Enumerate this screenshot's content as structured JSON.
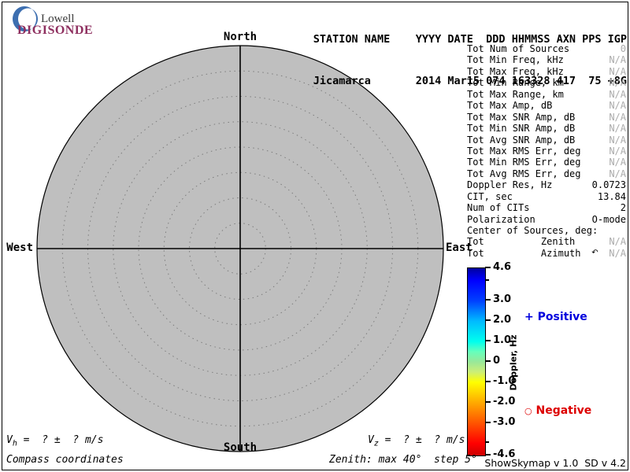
{
  "logo": {
    "name": "Lowell",
    "product": "DIGISONDE",
    "crescent_color": "#3c6eb0",
    "name_color": "#3a3a3a",
    "product_color": "#8e2f5f"
  },
  "header": {
    "columns_line": "STATION NAME    YYYY DATE  DDD HHMMSS AXN PPS IGP",
    "values_line": "Jicamarca       2014 Mar15 074 163328 417  75 +8G",
    "station_name": "Jicamarca",
    "year": "2014",
    "date": "Mar15",
    "ddd": "074",
    "hhmmss": "163328",
    "axn": "417",
    "pps": "75",
    "igp": "+8G"
  },
  "info_panel": {
    "muted_color": "#ababab",
    "rows": [
      {
        "label": "Tot Num of Sources",
        "value": "0",
        "muted": true
      },
      {
        "label": "Tot Min Freq, kHz",
        "value": "N/A",
        "muted": true
      },
      {
        "label": "Tot Max Freq, kHz",
        "value": "N/A",
        "muted": true
      },
      {
        "label": "Tot Min Range, km",
        "value": "N/A",
        "muted": true
      },
      {
        "label": "Tot Max Range, km",
        "value": "N/A",
        "muted": true
      },
      {
        "label": "Tot Max Amp, dB",
        "value": "N/A",
        "muted": true
      },
      {
        "label": "Tot Max SNR Amp, dB",
        "value": "N/A",
        "muted": true
      },
      {
        "label": "Tot Min SNR Amp, dB",
        "value": "N/A",
        "muted": true
      },
      {
        "label": "Tot Avg SNR Amp, dB",
        "value": "N/A",
        "muted": true
      },
      {
        "label": "Tot Max RMS Err, deg",
        "value": "N/A",
        "muted": true
      },
      {
        "label": "Tot Min RMS Err, deg",
        "value": "N/A",
        "muted": true
      },
      {
        "label": "Tot Avg RMS Err, deg",
        "value": "N/A",
        "muted": true
      },
      {
        "label": "Doppler Res, Hz",
        "value": "0.0723",
        "muted": false
      },
      {
        "label": "CIT, sec",
        "value": "13.84",
        "muted": false
      },
      {
        "label": "Num of CITs",
        "value": "2",
        "muted": false
      },
      {
        "label": "Polarization",
        "value": "O-mode",
        "muted": false
      },
      {
        "label": "Center of Sources, deg:",
        "value": "",
        "muted": false
      },
      {
        "label": "Tot          Zenith",
        "value": "N/A",
        "muted": true
      },
      {
        "label": "Tot          Azimuth",
        "icon": "↶",
        "value": "N/A",
        "muted": true
      }
    ]
  },
  "legend": {
    "positive_marker": "+",
    "positive_label": "Positive",
    "positive_color": "#0000dd",
    "negative_marker": "○",
    "negative_label": "Negative",
    "negative_color": "#dd0000"
  },
  "compass": {
    "north": "North",
    "south": "South",
    "east": "East",
    "west": "West"
  },
  "annotations": {
    "vh_prefix": "V",
    "vh_sub": "h",
    "vh_rest": " =  ? ±  ? m/s",
    "vz_prefix": "V",
    "vz_sub": "z",
    "vz_rest": " =  ? ±  ? m/s",
    "coords_note": "Compass coordinates",
    "zenith_note": "Zenith: max 40°  step 5°",
    "version_note": "ShowSkymap v 1.0  SD v 4.2"
  },
  "chart_data": {
    "type": "polar-skymap",
    "description": "Drift skymap in compass coordinates; no echo sources plotted",
    "num_sources": 0,
    "sources": [],
    "compass_labels": [
      "North",
      "East",
      "South",
      "West"
    ],
    "zenith_max_deg": 40,
    "zenith_step_deg": 5,
    "rings": 8,
    "plot_fill": "#bfbfbf",
    "ring_color": "#7d7d7d",
    "colorbar": {
      "label": "Doppler, Hz",
      "range": [
        -4.6,
        4.6
      ],
      "major_ticks": [
        {
          "value": 4.6,
          "label": "4.6"
        },
        {
          "value": 3.0,
          "label": "3.0"
        },
        {
          "value": 2.0,
          "label": "2.0"
        },
        {
          "value": 1.0,
          "label": "1.0"
        },
        {
          "value": 0,
          "label": "0"
        },
        {
          "value": -1.0,
          "label": "-1.0"
        },
        {
          "value": -2.0,
          "label": "-2.0"
        },
        {
          "value": -3.0,
          "label": "-3.0"
        },
        {
          "value": -4.6,
          "label": "-4.6"
        }
      ],
      "minor_ticks": [
        4.0,
        -4.0
      ],
      "gradient": [
        {
          "pos": 0,
          "color": "#0000a0"
        },
        {
          "pos": 6.5,
          "color": "#0000ff"
        },
        {
          "pos": 17.4,
          "color": "#0040ff"
        },
        {
          "pos": 28.3,
          "color": "#00bbff"
        },
        {
          "pos": 39.1,
          "color": "#00ffee"
        },
        {
          "pos": 44.6,
          "color": "#66ffbb"
        },
        {
          "pos": 50,
          "color": "#99e899"
        },
        {
          "pos": 55.4,
          "color": "#ccee77"
        },
        {
          "pos": 60.9,
          "color": "#ffff00"
        },
        {
          "pos": 71.7,
          "color": "#ffaa00"
        },
        {
          "pos": 82.6,
          "color": "#ff5500"
        },
        {
          "pos": 93.5,
          "color": "#ff0000"
        },
        {
          "pos": 100,
          "color": "#cc0000"
        }
      ]
    }
  }
}
